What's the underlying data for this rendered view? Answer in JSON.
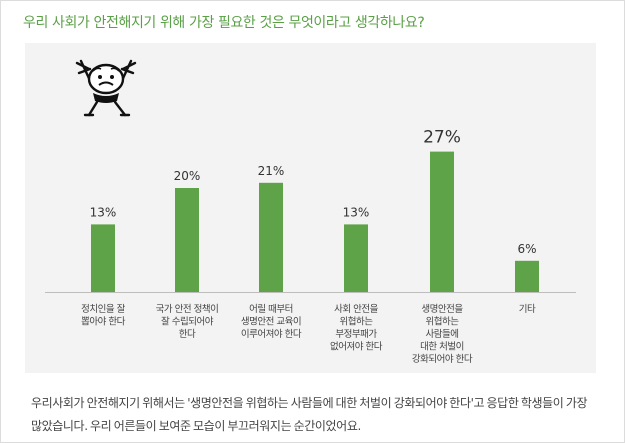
{
  "question": "우리 사회가 안전해지기 위해 가장 필요한 것은 무엇이라고 생각하나요?",
  "chart_data": {
    "type": "bar",
    "categories": [
      [
        "정치인을 잘",
        "뽑아야 한다"
      ],
      [
        "국가 안전 정책이",
        "잘 수립되어야",
        "한다"
      ],
      [
        "어릴 때부터",
        "생명안전 교육이",
        "이루어져야 한다"
      ],
      [
        "사회 안전을",
        "위협하는",
        "부정부패가",
        "없어져야 한다"
      ],
      [
        "생명안전을",
        "위협하는",
        "사람들에",
        "대한 처벌이",
        "강화되어야 한다"
      ],
      [
        "기타"
      ]
    ],
    "values": [
      13,
      20,
      21,
      13,
      27,
      6
    ],
    "value_labels": [
      "13%",
      "20%",
      "21%",
      "13%",
      "27%",
      "6%"
    ],
    "ylim": [
      0,
      30
    ],
    "grid": false,
    "bar_color": "#5fa349",
    "highlight_index": 4
  },
  "description": "우리사회가 안전해지기 위해서는 '생명안전을 위협하는 사람들에 대한 처벌이 강화되어야 한다'고 응답한 학생들이 가장 많았습니다. 우리 어른들이 보여준 모습이 부끄러워지는 순간이었어요.",
  "colors": {
    "accent": "#5aa046",
    "panel": "#f3f3f3"
  }
}
